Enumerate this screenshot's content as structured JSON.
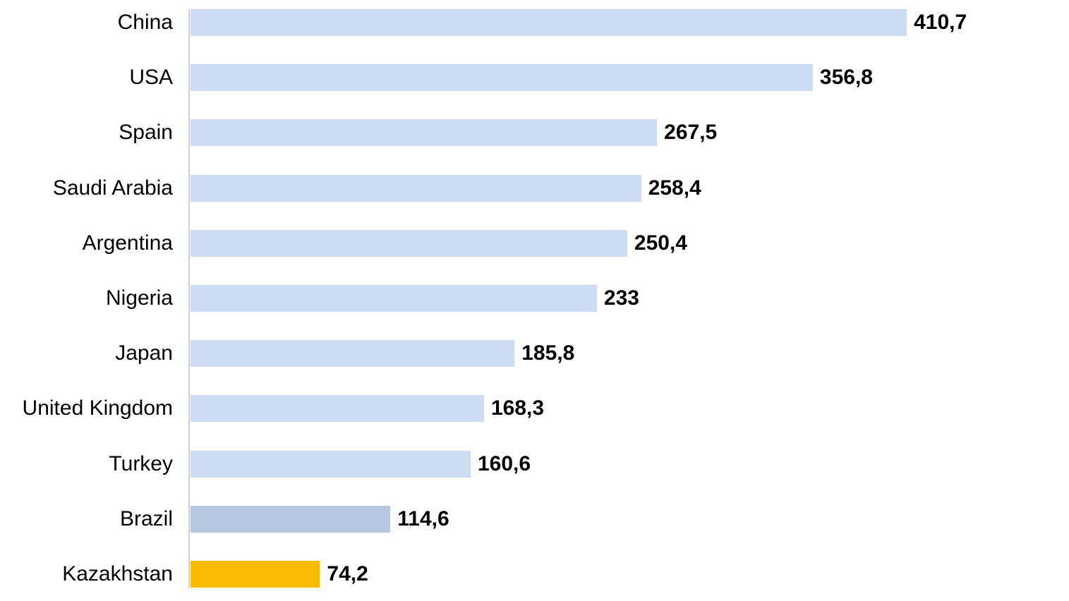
{
  "chart_data": {
    "type": "bar",
    "orientation": "horizontal",
    "title": "",
    "categories": [
      "China",
      "USA",
      "Spain",
      "Saudi Arabia",
      "Argentina",
      "Nigeria",
      "Japan",
      "United Kingdom",
      "Turkey",
      "Brazil",
      "Kazakhstan"
    ],
    "values": [
      410.7,
      356.8,
      267.5,
      258.4,
      250.4,
      233,
      185.8,
      168.3,
      160.6,
      114.6,
      74.2
    ],
    "value_labels": [
      "410,7",
      "356,8",
      "267,5",
      "258,4",
      "250,4",
      "233",
      "185,8",
      "168,3",
      "160,6",
      "114,6",
      "74,2"
    ],
    "bar_colors": [
      "#CDDCF2",
      "#CDDCF2",
      "#CDDCF2",
      "#CDDCF2",
      "#CDDCF2",
      "#CDDCF2",
      "#CDDCF2",
      "#CDDCF2",
      "#CDDCF2",
      "#B5C7E2",
      "#F9BC00"
    ],
    "xlim": [
      0,
      503.7
    ],
    "grid": false,
    "legend": false,
    "xlabel": "",
    "ylabel": "",
    "colors": {
      "bar_default": "#CDDCF2",
      "bar_brazil": "#B5C7E2",
      "bar_highlight": "#F9BC00",
      "axis_line": "#D0D0D0",
      "label_text": "#000000",
      "value_text": "#000000",
      "background": "#FFFFFF"
    }
  }
}
